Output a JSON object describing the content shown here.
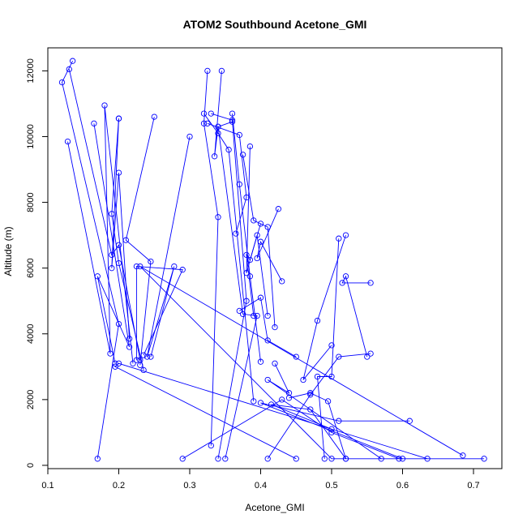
{
  "chart_data": {
    "type": "line",
    "title": "ATOM2 Southbound Acetone_GMI",
    "xlabel": "Acetone_GMI",
    "ylabel": "Altitude (m)",
    "xlim": [
      0.1,
      0.74
    ],
    "ylim": [
      -100,
      12700
    ],
    "xticks": [
      0.1,
      0.2,
      0.3,
      0.4,
      0.5,
      0.6,
      0.7
    ],
    "yticks": [
      0,
      2000,
      4000,
      6000,
      8000,
      10000,
      12000
    ],
    "xtick_labels": [
      "0.1",
      "0.2",
      "0.3",
      "0.4",
      "0.5",
      "0.6",
      "0.7"
    ],
    "ytick_labels": [
      "0",
      "2000",
      "4000",
      "6000",
      "8000",
      "10000",
      "12000"
    ],
    "series_color": "#0000ff",
    "marker": "open-circle",
    "grid": false,
    "legend": "none",
    "segments": [
      [
        [
          0.13,
          12050
        ],
        [
          0.19,
          6400
        ],
        [
          0.2,
          6700
        ],
        [
          0.23,
          3200
        ]
      ],
      [
        [
          0.135,
          12300
        ],
        [
          0.12,
          11650
        ],
        [
          0.2,
          4300
        ],
        [
          0.17,
          200
        ]
      ],
      [
        [
          0.128,
          9850
        ],
        [
          0.188,
          3400
        ],
        [
          0.18,
          10950
        ],
        [
          0.22,
          3100
        ]
      ],
      [
        [
          0.165,
          10400
        ],
        [
          0.215,
          3600
        ],
        [
          0.17,
          5750
        ],
        [
          0.195,
          3100
        ]
      ],
      [
        [
          0.2,
          10550
        ],
        [
          0.19,
          6000
        ],
        [
          0.2,
          8900
        ],
        [
          0.215,
          3850
        ]
      ],
      [
        [
          0.2,
          10550
        ],
        [
          0.19,
          7650
        ],
        [
          0.2,
          6150
        ],
        [
          0.235,
          2900
        ]
      ],
      [
        [
          0.25,
          10600
        ],
        [
          0.21,
          6850
        ],
        [
          0.245,
          6200
        ],
        [
          0.23,
          3050
        ]
      ],
      [
        [
          0.3,
          10000
        ],
        [
          0.24,
          3300
        ],
        [
          0.278,
          6050
        ],
        [
          0.245,
          3300
        ]
      ],
      [
        [
          0.235,
          3350
        ],
        [
          0.29,
          5950
        ],
        [
          0.225,
          6050
        ],
        [
          0.225,
          3200
        ]
      ],
      [
        [
          0.325,
          12000
        ],
        [
          0.32,
          10400
        ],
        [
          0.34,
          7550
        ],
        [
          0.33,
          600
        ]
      ],
      [
        [
          0.345,
          12000
        ],
        [
          0.335,
          9400
        ],
        [
          0.34,
          10300
        ],
        [
          0.36,
          10450
        ]
      ],
      [
        [
          0.32,
          10700
        ],
        [
          0.34,
          10100
        ],
        [
          0.355,
          9600
        ],
        [
          0.39,
          1950
        ]
      ],
      [
        [
          0.33,
          10700
        ],
        [
          0.36,
          10500
        ],
        [
          0.38,
          5000
        ],
        [
          0.34,
          200
        ]
      ],
      [
        [
          0.325,
          10400
        ],
        [
          0.37,
          10050
        ],
        [
          0.38,
          8150
        ],
        [
          0.365,
          7050
        ]
      ],
      [
        [
          0.36,
          10700
        ],
        [
          0.37,
          8550
        ],
        [
          0.385,
          5750
        ],
        [
          0.4,
          3150
        ]
      ],
      [
        [
          0.34,
          10300
        ],
        [
          0.375,
          4600
        ],
        [
          0.395,
          4550
        ],
        [
          0.35,
          200
        ]
      ],
      [
        [
          0.385,
          9700
        ],
        [
          0.38,
          5850
        ],
        [
          0.395,
          7000
        ],
        [
          0.41,
          4550
        ]
      ],
      [
        [
          0.375,
          9450
        ],
        [
          0.39,
          7450
        ],
        [
          0.41,
          7250
        ],
        [
          0.42,
          4200
        ]
      ],
      [
        [
          0.425,
          7800
        ],
        [
          0.395,
          6300
        ],
        [
          0.4,
          6800
        ],
        [
          0.43,
          5600
        ]
      ],
      [
        [
          0.4,
          7350
        ],
        [
          0.385,
          6250
        ],
        [
          0.38,
          6400
        ],
        [
          0.39,
          4550
        ]
      ],
      [
        [
          0.37,
          4700
        ],
        [
          0.4,
          5100
        ],
        [
          0.41,
          3800
        ],
        [
          0.45,
          3300
        ]
      ],
      [
        [
          0.52,
          7000
        ],
        [
          0.48,
          4400
        ],
        [
          0.46,
          2600
        ],
        [
          0.5,
          3650
        ]
      ],
      [
        [
          0.51,
          6900
        ],
        [
          0.5,
          2700
        ],
        [
          0.48,
          2700
        ],
        [
          0.49,
          200
        ]
      ],
      [
        [
          0.555,
          5550
        ],
        [
          0.515,
          5550
        ],
        [
          0.52,
          5750
        ],
        [
          0.55,
          3300
        ]
      ],
      [
        [
          0.555,
          3400
        ],
        [
          0.51,
          3300
        ],
        [
          0.47,
          2150
        ],
        [
          0.41,
          200
        ]
      ],
      [
        [
          0.57,
          200
        ],
        [
          0.41,
          2600
        ],
        [
          0.44,
          2200
        ],
        [
          0.42,
          3100
        ]
      ],
      [
        [
          0.6,
          200
        ],
        [
          0.4,
          1900
        ],
        [
          0.51,
          1350
        ],
        [
          0.61,
          1350
        ]
      ],
      [
        [
          0.29,
          200
        ],
        [
          0.43,
          2000
        ],
        [
          0.5,
          1000
        ],
        [
          0.595,
          200
        ]
      ],
      [
        [
          0.635,
          200
        ],
        [
          0.2,
          3100
        ],
        [
          0.195,
          3000
        ],
        [
          0.45,
          200
        ]
      ],
      [
        [
          0.685,
          300
        ],
        [
          0.23,
          6050
        ],
        [
          0.5,
          200
        ],
        [
          0.715,
          200
        ]
      ],
      [
        [
          0.52,
          200
        ],
        [
          0.47,
          1700
        ],
        [
          0.415,
          1850
        ],
        [
          0.5,
          1100
        ]
      ],
      [
        [
          0.44,
          2050
        ],
        [
          0.47,
          2200
        ],
        [
          0.495,
          1950
        ],
        [
          0.52,
          200
        ]
      ]
    ]
  }
}
